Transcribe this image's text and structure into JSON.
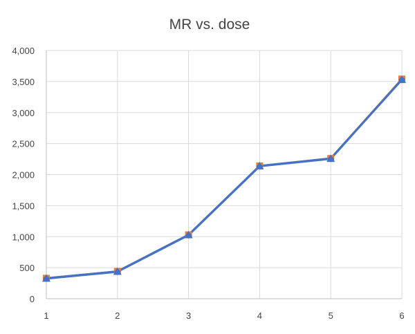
{
  "chart_data": {
    "type": "line",
    "title": "MR vs. dose",
    "xlabel": "",
    "ylabel": "",
    "x": [
      1,
      2,
      3,
      4,
      5,
      6
    ],
    "x_tick_labels": [
      "1",
      "2",
      "3",
      "4",
      "5",
      "6"
    ],
    "y_tick_labels": [
      "0",
      "500",
      "1,000",
      "1,500",
      "2,000",
      "2,500",
      "3,000",
      "3,500",
      "4,000"
    ],
    "ylim": [
      0,
      4000
    ],
    "y_ticks": [
      0,
      500,
      1000,
      1500,
      2000,
      2500,
      3000,
      3500,
      4000
    ],
    "grid": true,
    "legend": "none",
    "series": [
      {
        "color": "#ED7D31",
        "marker": "square",
        "values": [
          330,
          440,
          1030,
          2140,
          2260,
          3540
        ]
      },
      {
        "color": "#4472C4",
        "marker": "triangle",
        "values": [
          330,
          440,
          1030,
          2140,
          2260,
          3530
        ]
      },
      {
        "color": "#4472C4",
        "marker": "diamond",
        "values": [
          325,
          435,
          1025,
          2135,
          2255,
          3530
        ]
      }
    ]
  }
}
